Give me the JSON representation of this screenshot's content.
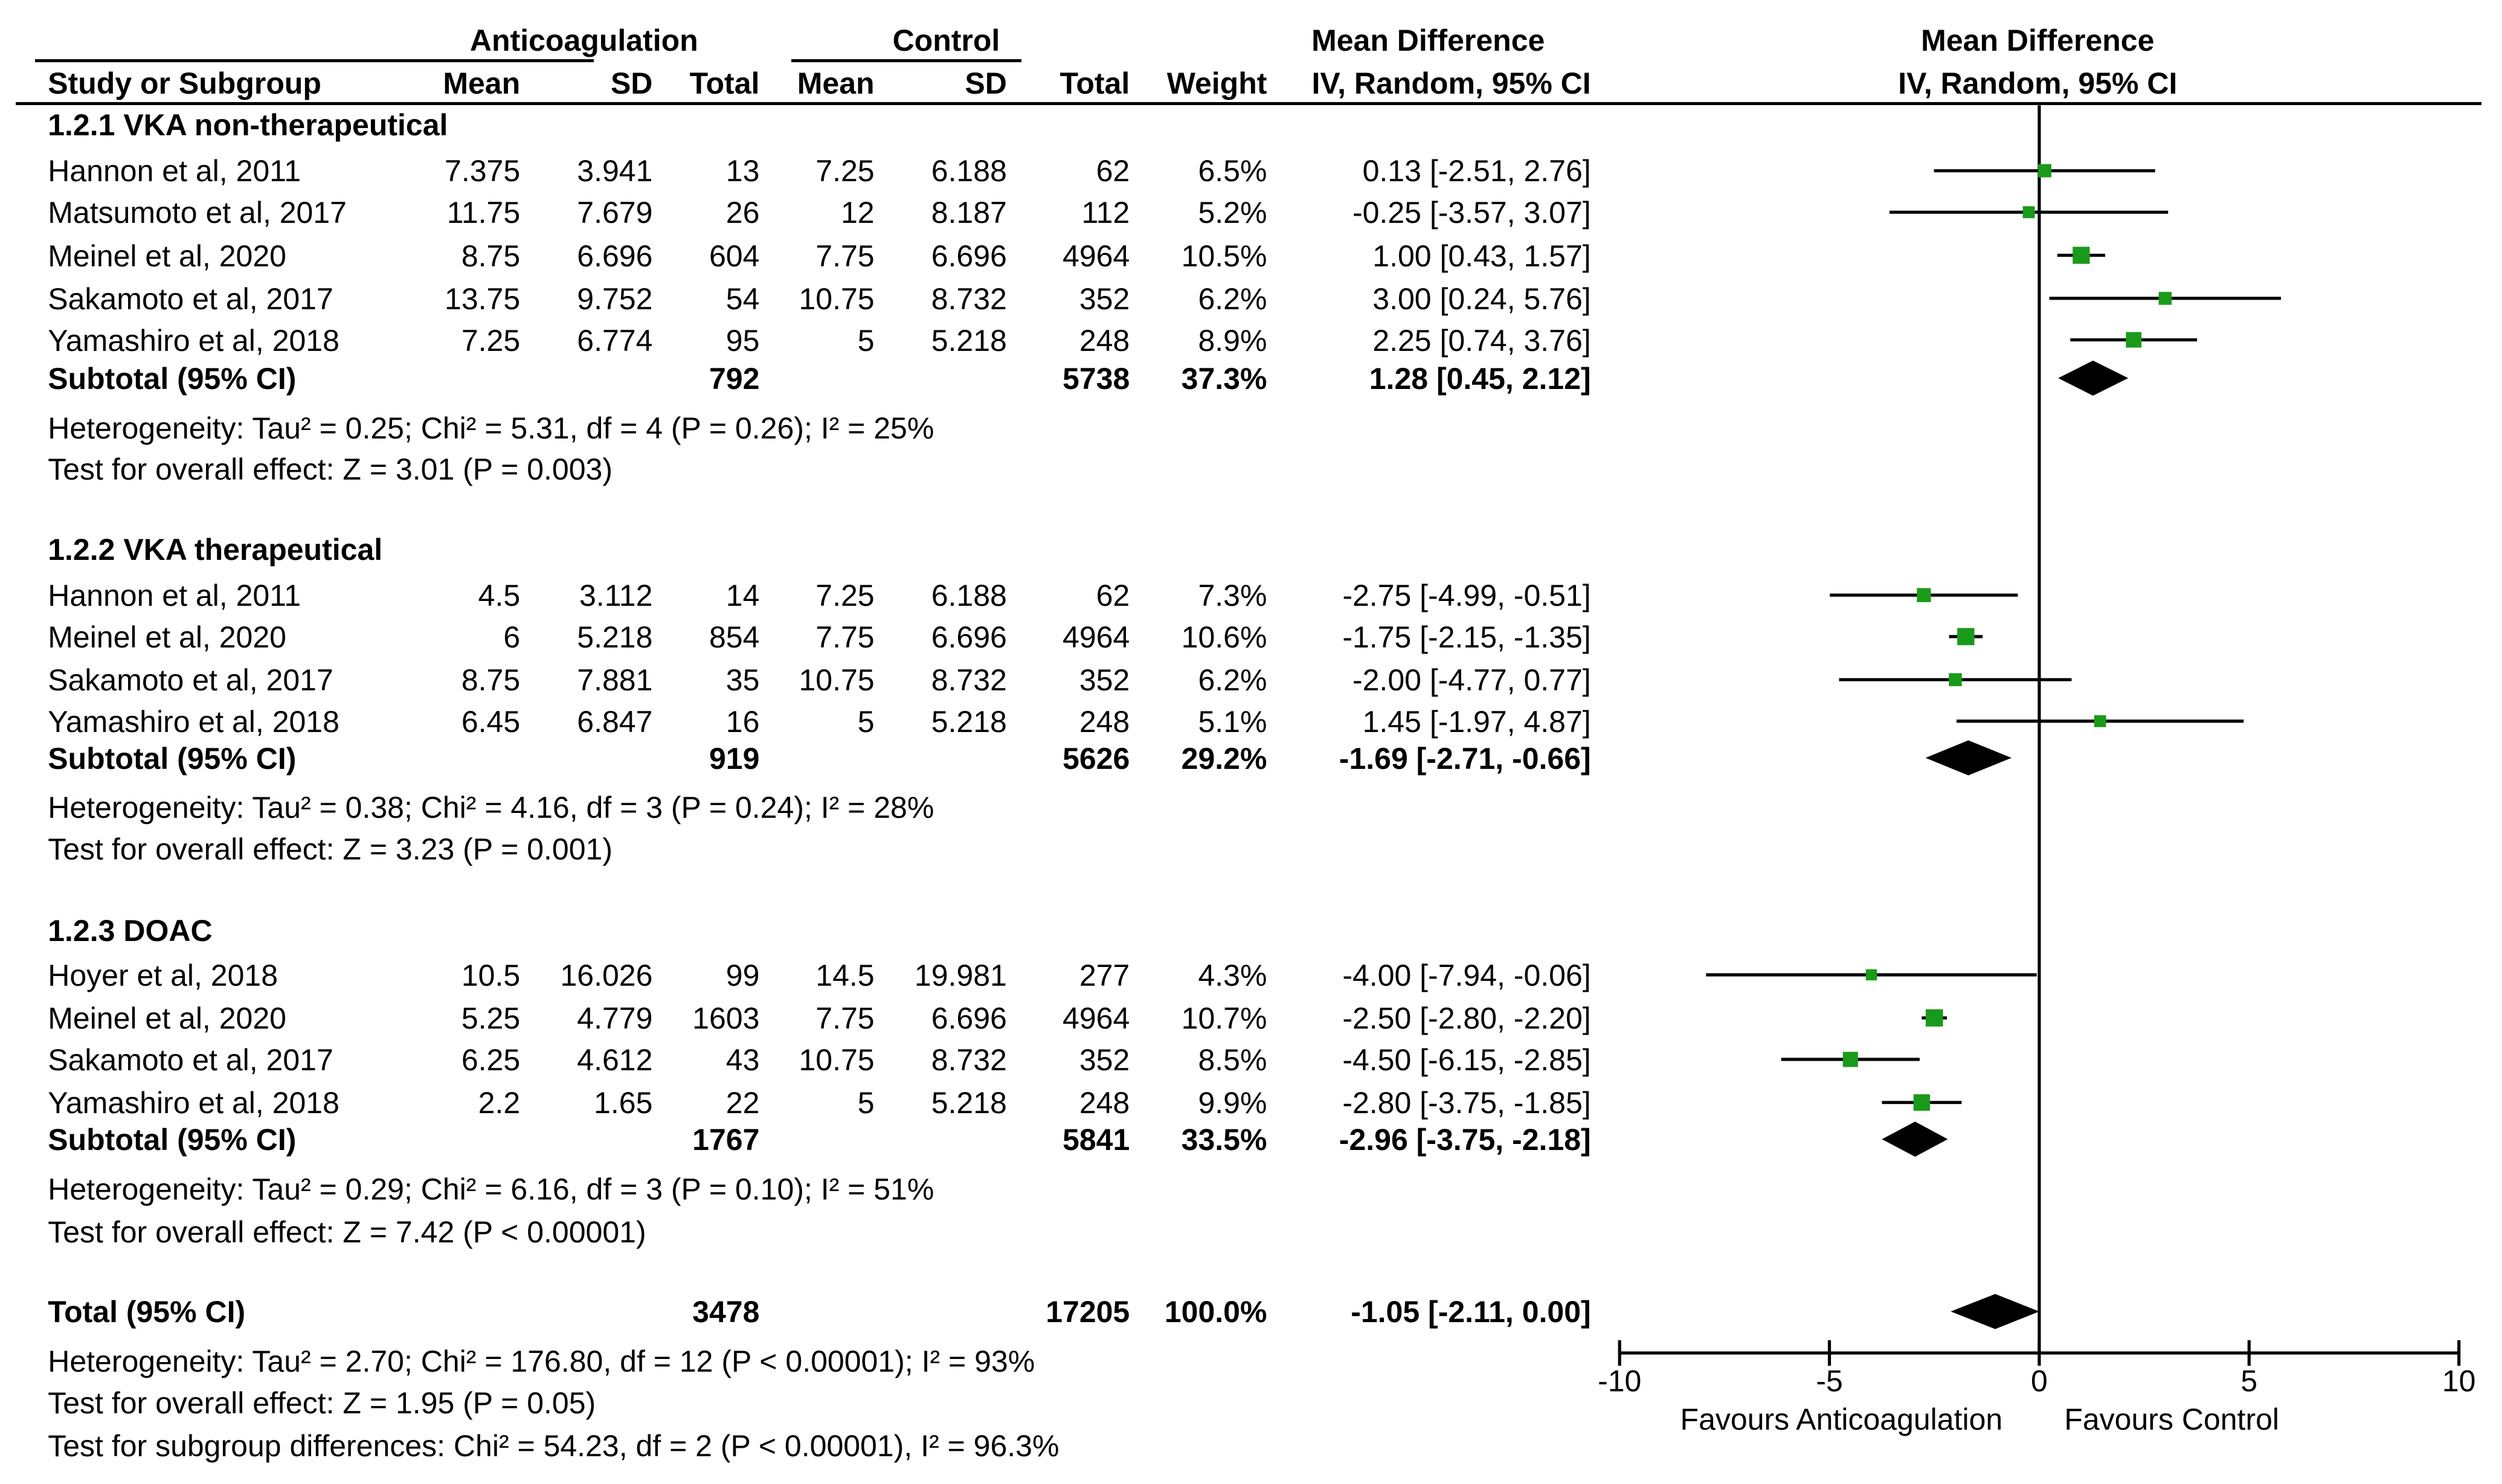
{
  "chart_data": {
    "type": "forest",
    "header": {
      "group1": "Anticoagulation",
      "group2": "Control",
      "col_study": "Study or Subgroup",
      "col_mean1": "Mean",
      "col_sd1": "SD",
      "col_total1": "Total",
      "col_mean2": "Mean",
      "col_sd2": "SD",
      "col_total2": "Total",
      "col_weight": "Weight",
      "md_title": "Mean Difference",
      "md_sub": "IV, Random, 95% CI",
      "plot_title": "Mean Difference",
      "plot_sub": "IV, Random, 95% CI"
    },
    "subgroups": [
      {
        "title": "1.2.1 VKA non-therapeutical",
        "studies": [
          {
            "name": "Hannon et al, 2011",
            "m1": "7.375",
            "sd1": "3.941",
            "n1": "13",
            "m2": "7.25",
            "sd2": "6.188",
            "n2": "62",
            "weight": "6.5%",
            "ci_text": "0.13 [-2.51, 2.76]",
            "md": 0.13,
            "lo": -2.51,
            "hi": 2.76,
            "w": 6.5
          },
          {
            "name": "Matsumoto et al, 2017",
            "m1": "11.75",
            "sd1": "7.679",
            "n1": "26",
            "m2": "12",
            "sd2": "8.187",
            "n2": "112",
            "weight": "5.2%",
            "ci_text": "-0.25 [-3.57, 3.07]",
            "md": -0.25,
            "lo": -3.57,
            "hi": 3.07,
            "w": 5.2
          },
          {
            "name": "Meinel et al, 2020",
            "m1": "8.75",
            "sd1": "6.696",
            "n1": "604",
            "m2": "7.75",
            "sd2": "6.696",
            "n2": "4964",
            "weight": "10.5%",
            "ci_text": "1.00 [0.43, 1.57]",
            "md": 1.0,
            "lo": 0.43,
            "hi": 1.57,
            "w": 10.5
          },
          {
            "name": "Sakamoto et al, 2017",
            "m1": "13.75",
            "sd1": "9.752",
            "n1": "54",
            "m2": "10.75",
            "sd2": "8.732",
            "n2": "352",
            "weight": "6.2%",
            "ci_text": "3.00 [0.24, 5.76]",
            "md": 3.0,
            "lo": 0.24,
            "hi": 5.76,
            "w": 6.2
          },
          {
            "name": "Yamashiro et al, 2018",
            "m1": "7.25",
            "sd1": "6.774",
            "n1": "95",
            "m2": "5",
            "sd2": "5.218",
            "n2": "248",
            "weight": "8.9%",
            "ci_text": "2.25 [0.74, 3.76]",
            "md": 2.25,
            "lo": 0.74,
            "hi": 3.76,
            "w": 8.9
          }
        ],
        "subtotal": {
          "label": "Subtotal (95% CI)",
          "n1": "792",
          "n2": "5738",
          "weight": "37.3%",
          "ci_text": "1.28 [0.45, 2.12]",
          "md": 1.28,
          "lo": 0.45,
          "hi": 2.12
        },
        "heterogeneity": "Heterogeneity: Tau² = 0.25; Chi² = 5.31, df = 4 (P = 0.26); I² = 25%",
        "overall": "Test for overall effect: Z = 3.01 (P = 0.003)"
      },
      {
        "title": "1.2.2 VKA therapeutical",
        "studies": [
          {
            "name": "Hannon et al, 2011",
            "m1": "4.5",
            "sd1": "3.112",
            "n1": "14",
            "m2": "7.25",
            "sd2": "6.188",
            "n2": "62",
            "weight": "7.3%",
            "ci_text": "-2.75 [-4.99, -0.51]",
            "md": -2.75,
            "lo": -4.99,
            "hi": -0.51,
            "w": 7.3
          },
          {
            "name": "Meinel et al, 2020",
            "m1": "6",
            "sd1": "5.218",
            "n1": "854",
            "m2": "7.75",
            "sd2": "6.696",
            "n2": "4964",
            "weight": "10.6%",
            "ci_text": "-1.75 [-2.15, -1.35]",
            "md": -1.75,
            "lo": -2.15,
            "hi": -1.35,
            "w": 10.6
          },
          {
            "name": "Sakamoto et al, 2017",
            "m1": "8.75",
            "sd1": "7.881",
            "n1": "35",
            "m2": "10.75",
            "sd2": "8.732",
            "n2": "352",
            "weight": "6.2%",
            "ci_text": "-2.00 [-4.77, 0.77]",
            "md": -2.0,
            "lo": -4.77,
            "hi": 0.77,
            "w": 6.2
          },
          {
            "name": "Yamashiro et al, 2018",
            "m1": "6.45",
            "sd1": "6.847",
            "n1": "16",
            "m2": "5",
            "sd2": "5.218",
            "n2": "248",
            "weight": "5.1%",
            "ci_text": "1.45 [-1.97, 4.87]",
            "md": 1.45,
            "lo": -1.97,
            "hi": 4.87,
            "w": 5.1
          }
        ],
        "subtotal": {
          "label": "Subtotal (95% CI)",
          "n1": "919",
          "n2": "5626",
          "weight": "29.2%",
          "ci_text": "-1.69 [-2.71, -0.66]",
          "md": -1.69,
          "lo": -2.71,
          "hi": -0.66
        },
        "heterogeneity": "Heterogeneity: Tau² = 0.38; Chi² = 4.16, df = 3 (P = 0.24); I² = 28%",
        "overall": "Test for overall effect: Z = 3.23 (P = 0.001)"
      },
      {
        "title": "1.2.3 DOAC",
        "studies": [
          {
            "name": "Hoyer et al, 2018",
            "m1": "10.5",
            "sd1": "16.026",
            "n1": "99",
            "m2": "14.5",
            "sd2": "19.981",
            "n2": "277",
            "weight": "4.3%",
            "ci_text": "-4.00 [-7.94, -0.06]",
            "md": -4.0,
            "lo": -7.94,
            "hi": -0.06,
            "w": 4.3
          },
          {
            "name": "Meinel et al, 2020",
            "m1": "5.25",
            "sd1": "4.779",
            "n1": "1603",
            "m2": "7.75",
            "sd2": "6.696",
            "n2": "4964",
            "weight": "10.7%",
            "ci_text": "-2.50 [-2.80, -2.20]",
            "md": -2.5,
            "lo": -2.8,
            "hi": -2.2,
            "w": 10.7
          },
          {
            "name": "Sakamoto et al, 2017",
            "m1": "6.25",
            "sd1": "4.612",
            "n1": "43",
            "m2": "10.75",
            "sd2": "8.732",
            "n2": "352",
            "weight": "8.5%",
            "ci_text": "-4.50 [-6.15, -2.85]",
            "md": -4.5,
            "lo": -6.15,
            "hi": -2.85,
            "w": 8.5
          },
          {
            "name": "Yamashiro et al, 2018",
            "m1": "2.2",
            "sd1": "1.65",
            "n1": "22",
            "m2": "5",
            "sd2": "5.218",
            "n2": "248",
            "weight": "9.9%",
            "ci_text": "-2.80 [-3.75, -1.85]",
            "md": -2.8,
            "lo": -3.75,
            "hi": -1.85,
            "w": 9.9
          }
        ],
        "subtotal": {
          "label": "Subtotal (95% CI)",
          "n1": "1767",
          "n2": "5841",
          "weight": "33.5%",
          "ci_text": "-2.96 [-3.75, -2.18]",
          "md": -2.96,
          "lo": -3.75,
          "hi": -2.18
        },
        "heterogeneity": "Heterogeneity: Tau² = 0.29; Chi² = 6.16, df = 3 (P = 0.10); I² = 51%",
        "overall": "Test for overall effect: Z = 7.42 (P < 0.00001)"
      }
    ],
    "total": {
      "label": "Total (95% CI)",
      "n1": "3478",
      "n2": "17205",
      "weight": "100.0%",
      "ci_text": "-1.05 [-2.11, 0.00]",
      "md": -1.05,
      "lo": -2.11,
      "hi": 0.0
    },
    "footer": {
      "heterogeneity": "Heterogeneity: Tau² = 2.70; Chi² = 176.80, df = 12 (P < 0.00001); I² = 93%",
      "overall": "Test for overall effect: Z = 1.95 (P = 0.05)",
      "subgroup": "Test for subgroup differences: Chi² = 54.23, df = 2 (P < 0.00001), I² = 96.3%"
    },
    "axis": {
      "xlim": [
        -10,
        10
      ],
      "ticks": [
        -10,
        -5,
        0,
        5,
        10
      ],
      "tick_labels": [
        "-10",
        "-5",
        "0",
        "5",
        "10"
      ],
      "favours_left": "Favours Anticoagulation",
      "favours_right": "Favours Control"
    },
    "colors": {
      "marker": "#1a9a1a",
      "line": "#000000",
      "diamond": "#000000"
    }
  }
}
